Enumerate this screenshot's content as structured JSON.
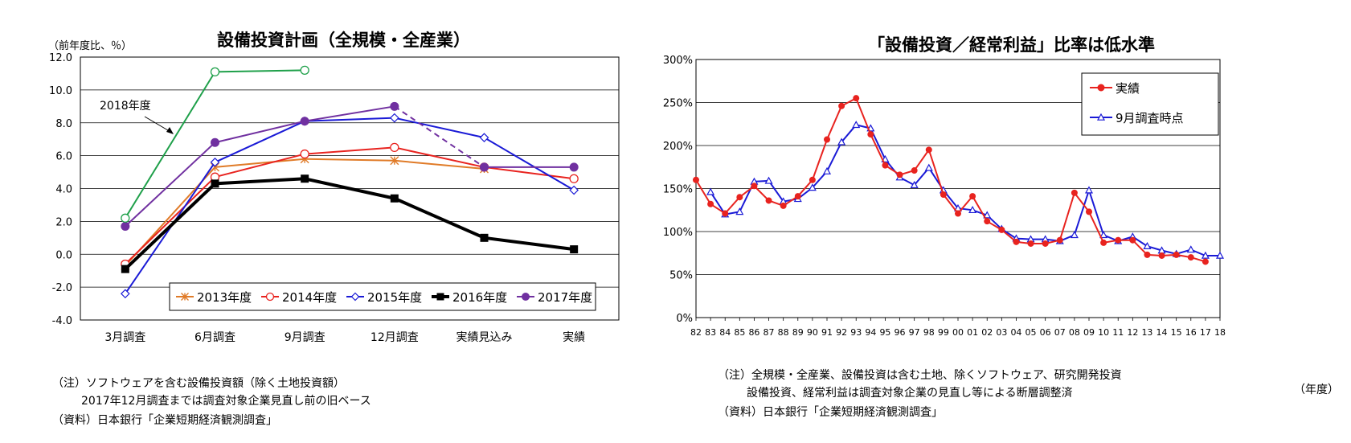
{
  "chart_data": [
    {
      "type": "line",
      "title": "設備投資計画（全規模・全産業）",
      "ylabel": "（前年度比、％）",
      "categories": [
        "3月調査",
        "6月調査",
        "9月調査",
        "12月調査",
        "実績見込み",
        "実績"
      ],
      "ylim": [
        -4.0,
        12.0
      ],
      "yticks": [
        "12.0",
        "10.0",
        "8.0",
        "6.0",
        "4.0",
        "2.0",
        "0.0",
        "-2.0",
        "-4.0"
      ],
      "grid": true,
      "legend_position": "bottom-right inside",
      "series": [
        {
          "name": "2013年度",
          "color": "#e07b28",
          "marker": "asterisk",
          "values": [
            -0.7,
            5.3,
            5.8,
            5.7,
            5.2,
            null
          ]
        },
        {
          "name": "2014年度",
          "color": "#e8231f",
          "marker": "circle-open",
          "values": [
            -0.6,
            4.7,
            6.1,
            6.5,
            5.3,
            4.6
          ]
        },
        {
          "name": "2015年度",
          "color": "#1a1ad6",
          "marker": "diamond-open",
          "values": [
            -2.4,
            5.6,
            8.1,
            8.3,
            7.1,
            3.9
          ]
        },
        {
          "name": "2016年度",
          "color": "#000000",
          "marker": "square",
          "values": [
            -0.9,
            4.3,
            4.6,
            3.4,
            1.0,
            0.3
          ]
        },
        {
          "name": "2017年度",
          "color": "#7030a0",
          "marker": "circle-filled",
          "values": [
            1.7,
            6.8,
            8.1,
            9.0,
            5.3,
            5.3
          ],
          "dashed_segment": [
            3,
            4
          ]
        },
        {
          "name": "2018年度",
          "color": "#1fa04a",
          "marker": "circle-open",
          "values": [
            2.2,
            11.1,
            11.2,
            null,
            null,
            null
          ],
          "in_legend": false
        }
      ],
      "annotations": [
        {
          "text": "2018年度"
        }
      ]
    },
    {
      "type": "line",
      "title": "「設備投資／経常利益」比率は低水準",
      "xlabel": "（年度）",
      "categories": [
        "82",
        "83",
        "84",
        "85",
        "86",
        "87",
        "88",
        "89",
        "90",
        "91",
        "92",
        "93",
        "94",
        "95",
        "96",
        "97",
        "98",
        "99",
        "00",
        "01",
        "02",
        "03",
        "04",
        "05",
        "06",
        "07",
        "08",
        "09",
        "10",
        "11",
        "12",
        "13",
        "14",
        "15",
        "16",
        "17",
        "18"
      ],
      "ylim": [
        0,
        300
      ],
      "yticks": [
        "300%",
        "250%",
        "200%",
        "150%",
        "100%",
        "50%",
        "0%"
      ],
      "grid": true,
      "legend_position": "top-right inside",
      "series": [
        {
          "name": "実績",
          "color": "#e8231f",
          "marker": "circle-filled",
          "values": [
            160,
            132,
            121,
            140,
            153,
            136,
            130,
            141,
            160,
            207,
            246,
            255,
            213,
            177,
            166,
            171,
            195,
            143,
            121,
            141,
            112,
            102,
            88,
            86,
            86,
            90,
            145,
            123,
            87,
            90,
            90,
            73,
            72,
            73,
            70,
            65,
            null
          ]
        },
        {
          "name": "9月調査時点",
          "color": "#1a1ad6",
          "marker": "triangle-open",
          "values": [
            null,
            146,
            120,
            123,
            158,
            159,
            135,
            138,
            151,
            170,
            204,
            224,
            220,
            184,
            163,
            154,
            174,
            148,
            127,
            125,
            119,
            103,
            92,
            91,
            91,
            89,
            96,
            148,
            96,
            89,
            94,
            83,
            78,
            74,
            79,
            72,
            72
          ]
        }
      ]
    }
  ],
  "left_notes": [
    "（注）ソフトウェアを含む設備投資額（除く土地投資額）",
    "2017年12月調査までは調査対象企業見直し前の旧ベース",
    "（資料）日本銀行「企業短期経済観測調査」"
  ],
  "right_notes": [
    "（注）全規模・全産業、設備投資は含む土地、除くソフトウェア、研究開発投資",
    "設備投資、経常利益は調査対象企業の見直し等による断層調整済",
    "（資料）日本銀行「企業短期経済観測調査」"
  ]
}
